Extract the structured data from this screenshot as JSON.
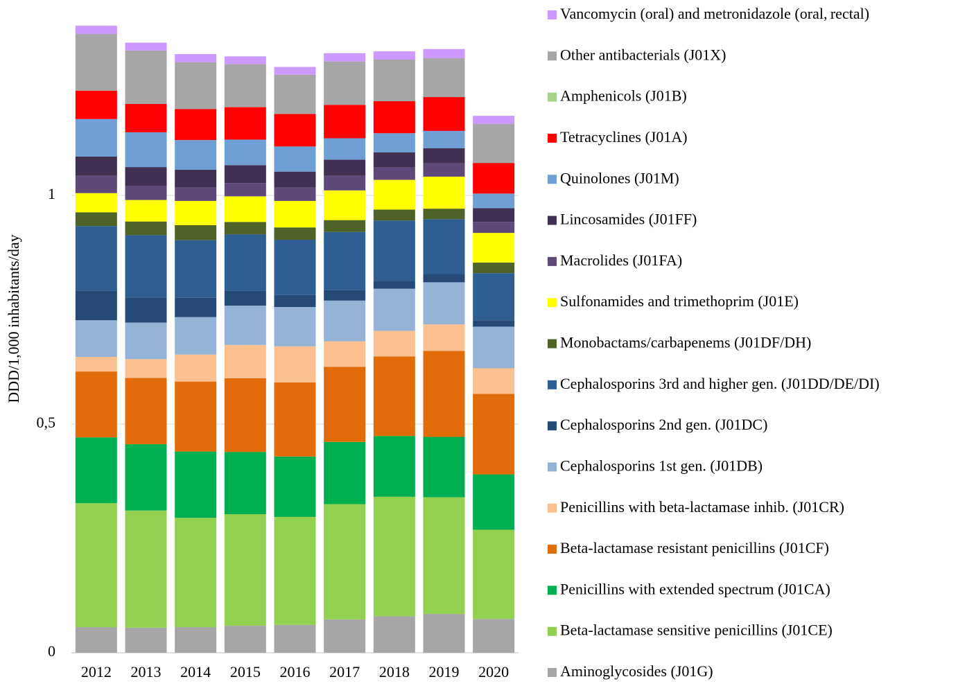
{
  "chart_data": {
    "type": "stacked_bar",
    "y_label": "DDD/1,000 inhabitants/day",
    "categories": [
      "2012",
      "2013",
      "2014",
      "2015",
      "2016",
      "2017",
      "2018",
      "2019",
      "2020"
    ],
    "ylim": [
      0,
      1.4
    ],
    "yticks": [
      0,
      {
        "value": 0.5,
        "label": "0,5"
      },
      1
    ],
    "grid": true,
    "legend": "right",
    "series": [
      {
        "name": "Aminoglycosides (J01G)",
        "color": "#a6a6a6",
        "values": [
          0.056,
          0.055,
          0.056,
          0.059,
          0.061,
          0.073,
          0.08,
          0.085,
          0.074
        ]
      },
      {
        "name": "Beta-lactamase sensitive penicillins (J01CE)",
        "color": "#92d050",
        "values": [
          0.271,
          0.256,
          0.239,
          0.244,
          0.236,
          0.252,
          0.261,
          0.255,
          0.195
        ]
      },
      {
        "name": "Penicillins with extended spectrum (J01CA)",
        "color": "#00b050",
        "values": [
          0.144,
          0.145,
          0.145,
          0.136,
          0.132,
          0.136,
          0.133,
          0.132,
          0.121
        ]
      },
      {
        "name": "Beta-lactamase resistant penicillins (J01CF)",
        "color": "#e36c0a",
        "values": [
          0.144,
          0.145,
          0.153,
          0.161,
          0.162,
          0.164,
          0.174,
          0.188,
          0.176
        ]
      },
      {
        "name": "Penicillins with beta-lactamase inhib. (J01CR)",
        "color": "#fac090",
        "values": [
          0.032,
          0.041,
          0.059,
          0.073,
          0.079,
          0.056,
          0.056,
          0.058,
          0.056
        ]
      },
      {
        "name": "Cephalosporins 1st gen. (J01DB)",
        "color": "#95b3d7",
        "values": [
          0.08,
          0.08,
          0.082,
          0.086,
          0.086,
          0.089,
          0.092,
          0.092,
          0.091
        ]
      },
      {
        "name": "Cephalosporins 2nd gen. (J01DC)",
        "color": "#254a77",
        "values": [
          0.065,
          0.055,
          0.042,
          0.032,
          0.026,
          0.023,
          0.017,
          0.018,
          0.014
        ]
      },
      {
        "name": "Cephalosporins 3rd and higher gen. (J01DD/DE/DI)",
        "color": "#2f5e93",
        "values": [
          0.141,
          0.136,
          0.126,
          0.124,
          0.121,
          0.127,
          0.132,
          0.12,
          0.103
        ]
      },
      {
        "name": "Monobactams/carbapenems (J01DF/DH)",
        "color": "#4f6228",
        "values": [
          0.03,
          0.03,
          0.033,
          0.027,
          0.027,
          0.026,
          0.024,
          0.023,
          0.023
        ]
      },
      {
        "name": "Sulfonamides and trimethoprim (J01E)",
        "color": "#ffff00",
        "values": [
          0.042,
          0.047,
          0.053,
          0.056,
          0.058,
          0.065,
          0.065,
          0.07,
          0.065
        ]
      },
      {
        "name": "Macrolides (J01FA)",
        "color": "#5f497a",
        "values": [
          0.038,
          0.03,
          0.029,
          0.029,
          0.029,
          0.032,
          0.027,
          0.029,
          0.024
        ]
      },
      {
        "name": "Lincosamides (J01FF)",
        "color": "#403152",
        "values": [
          0.042,
          0.042,
          0.039,
          0.039,
          0.035,
          0.035,
          0.033,
          0.033,
          0.03
        ]
      },
      {
        "name": "Quinolones (J01M)",
        "color": "#6f9fd4",
        "values": [
          0.082,
          0.076,
          0.065,
          0.056,
          0.055,
          0.047,
          0.042,
          0.038,
          0.032
        ]
      },
      {
        "name": "Tetracyclines (J01A)",
        "color": "#ff0000",
        "values": [
          0.062,
          0.062,
          0.068,
          0.071,
          0.071,
          0.073,
          0.07,
          0.074,
          0.067
        ]
      },
      {
        "name": "Amphenicols (J01B)",
        "color": "#a9d18e",
        "values": [
          0,
          0,
          0,
          0,
          0,
          0,
          0,
          0,
          0
        ]
      },
      {
        "name": "Other antibacterials (J01X)",
        "color": "#a6a6a6",
        "values": [
          0.124,
          0.117,
          0.102,
          0.094,
          0.086,
          0.095,
          0.091,
          0.085,
          0.085
        ]
      },
      {
        "name": "Vancomycin (oral) and metronidazole (oral, rectal)",
        "color": "#cc99ff",
        "values": [
          0.018,
          0.017,
          0.018,
          0.017,
          0.017,
          0.018,
          0.018,
          0.02,
          0.018
        ]
      }
    ]
  }
}
